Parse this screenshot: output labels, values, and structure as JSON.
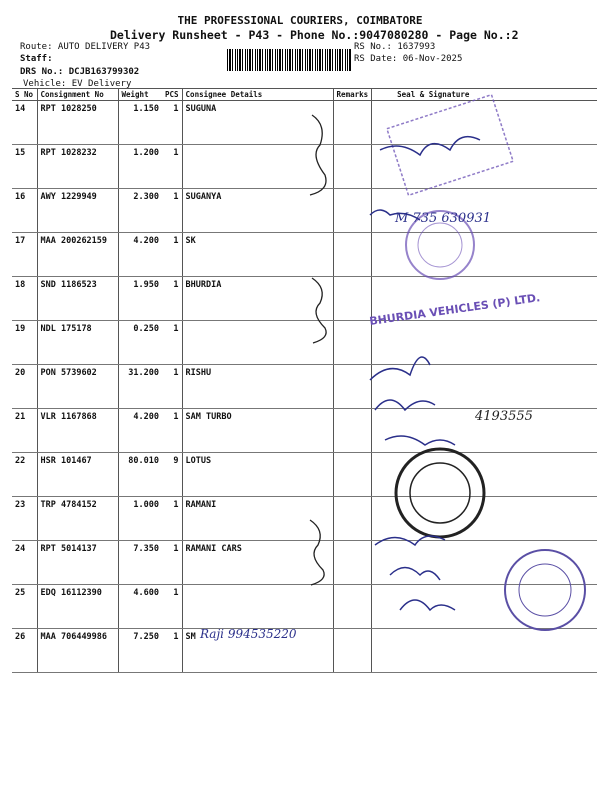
{
  "header": {
    "company": "THE PROFESSIONAL COURIERS, COIMBATORE",
    "subtitle": "Delivery Runsheet - P43 - Phone No.:9047080280 - Page No.:2",
    "route": "Route: AUTO DELIVERY P43",
    "staff": "Staff:",
    "drs_no": "DRS No.: DCJB163799302",
    "vehicle": "Vehicle: EV Delivery",
    "rs_no": "RS No.: 1637993",
    "rs_date": "RS Date: 06-Nov-2025"
  },
  "table": {
    "columns": [
      "S No",
      "Consignment No",
      "Weight",
      "PCS",
      "Consignee Details",
      "Remarks",
      "Seal & Signature"
    ],
    "rows": [
      {
        "sno": "14",
        "cons": "RPT 1028250",
        "weight": "1.150",
        "pcs": "1",
        "consignee": "SUGUNA"
      },
      {
        "sno": "15",
        "cons": "RPT 1028232",
        "weight": "1.200",
        "pcs": "1",
        "consignee": ""
      },
      {
        "sno": "16",
        "cons": "AWY 1229949",
        "weight": "2.300",
        "pcs": "1",
        "consignee": "SUGANYA"
      },
      {
        "sno": "17",
        "cons": "MAA 200262159",
        "weight": "4.200",
        "pcs": "1",
        "consignee": "SK"
      },
      {
        "sno": "18",
        "cons": "SND 1186523",
        "weight": "1.950",
        "pcs": "1",
        "consignee": "BHURDIA"
      },
      {
        "sno": "19",
        "cons": "NDL 175178",
        "weight": "0.250",
        "pcs": "1",
        "consignee": ""
      },
      {
        "sno": "20",
        "cons": "PON 5739602",
        "weight": "31.200",
        "pcs": "1",
        "consignee": "RISHU"
      },
      {
        "sno": "21",
        "cons": "VLR 1167868",
        "weight": "4.200",
        "pcs": "1",
        "consignee": "SAM TURBO"
      },
      {
        "sno": "22",
        "cons": "HSR 101467",
        "weight": "80.010",
        "pcs": "9",
        "consignee": "LOTUS"
      },
      {
        "sno": "23",
        "cons": "TRP 4784152",
        "weight": "1.000",
        "pcs": "1",
        "consignee": "RAMANI"
      },
      {
        "sno": "24",
        "cons": "RPT 5014137",
        "weight": "7.350",
        "pcs": "1",
        "consignee": "RAMANI CARS"
      },
      {
        "sno": "25",
        "cons": "EDQ 16112390",
        "weight": "4.600",
        "pcs": "1",
        "consignee": ""
      },
      {
        "sno": "26",
        "cons": "MAA 706449986",
        "weight": "7.250",
        "pcs": "1",
        "consignee": "SM"
      }
    ]
  },
  "handwriting": {
    "row17": "M 735 630931",
    "row21": "4193555",
    "footer": "Raji 994535220"
  },
  "colors": {
    "stamp_purple": "#6a4fb5",
    "ink_blue": "#2a2f8a",
    "ink_black": "#222"
  }
}
